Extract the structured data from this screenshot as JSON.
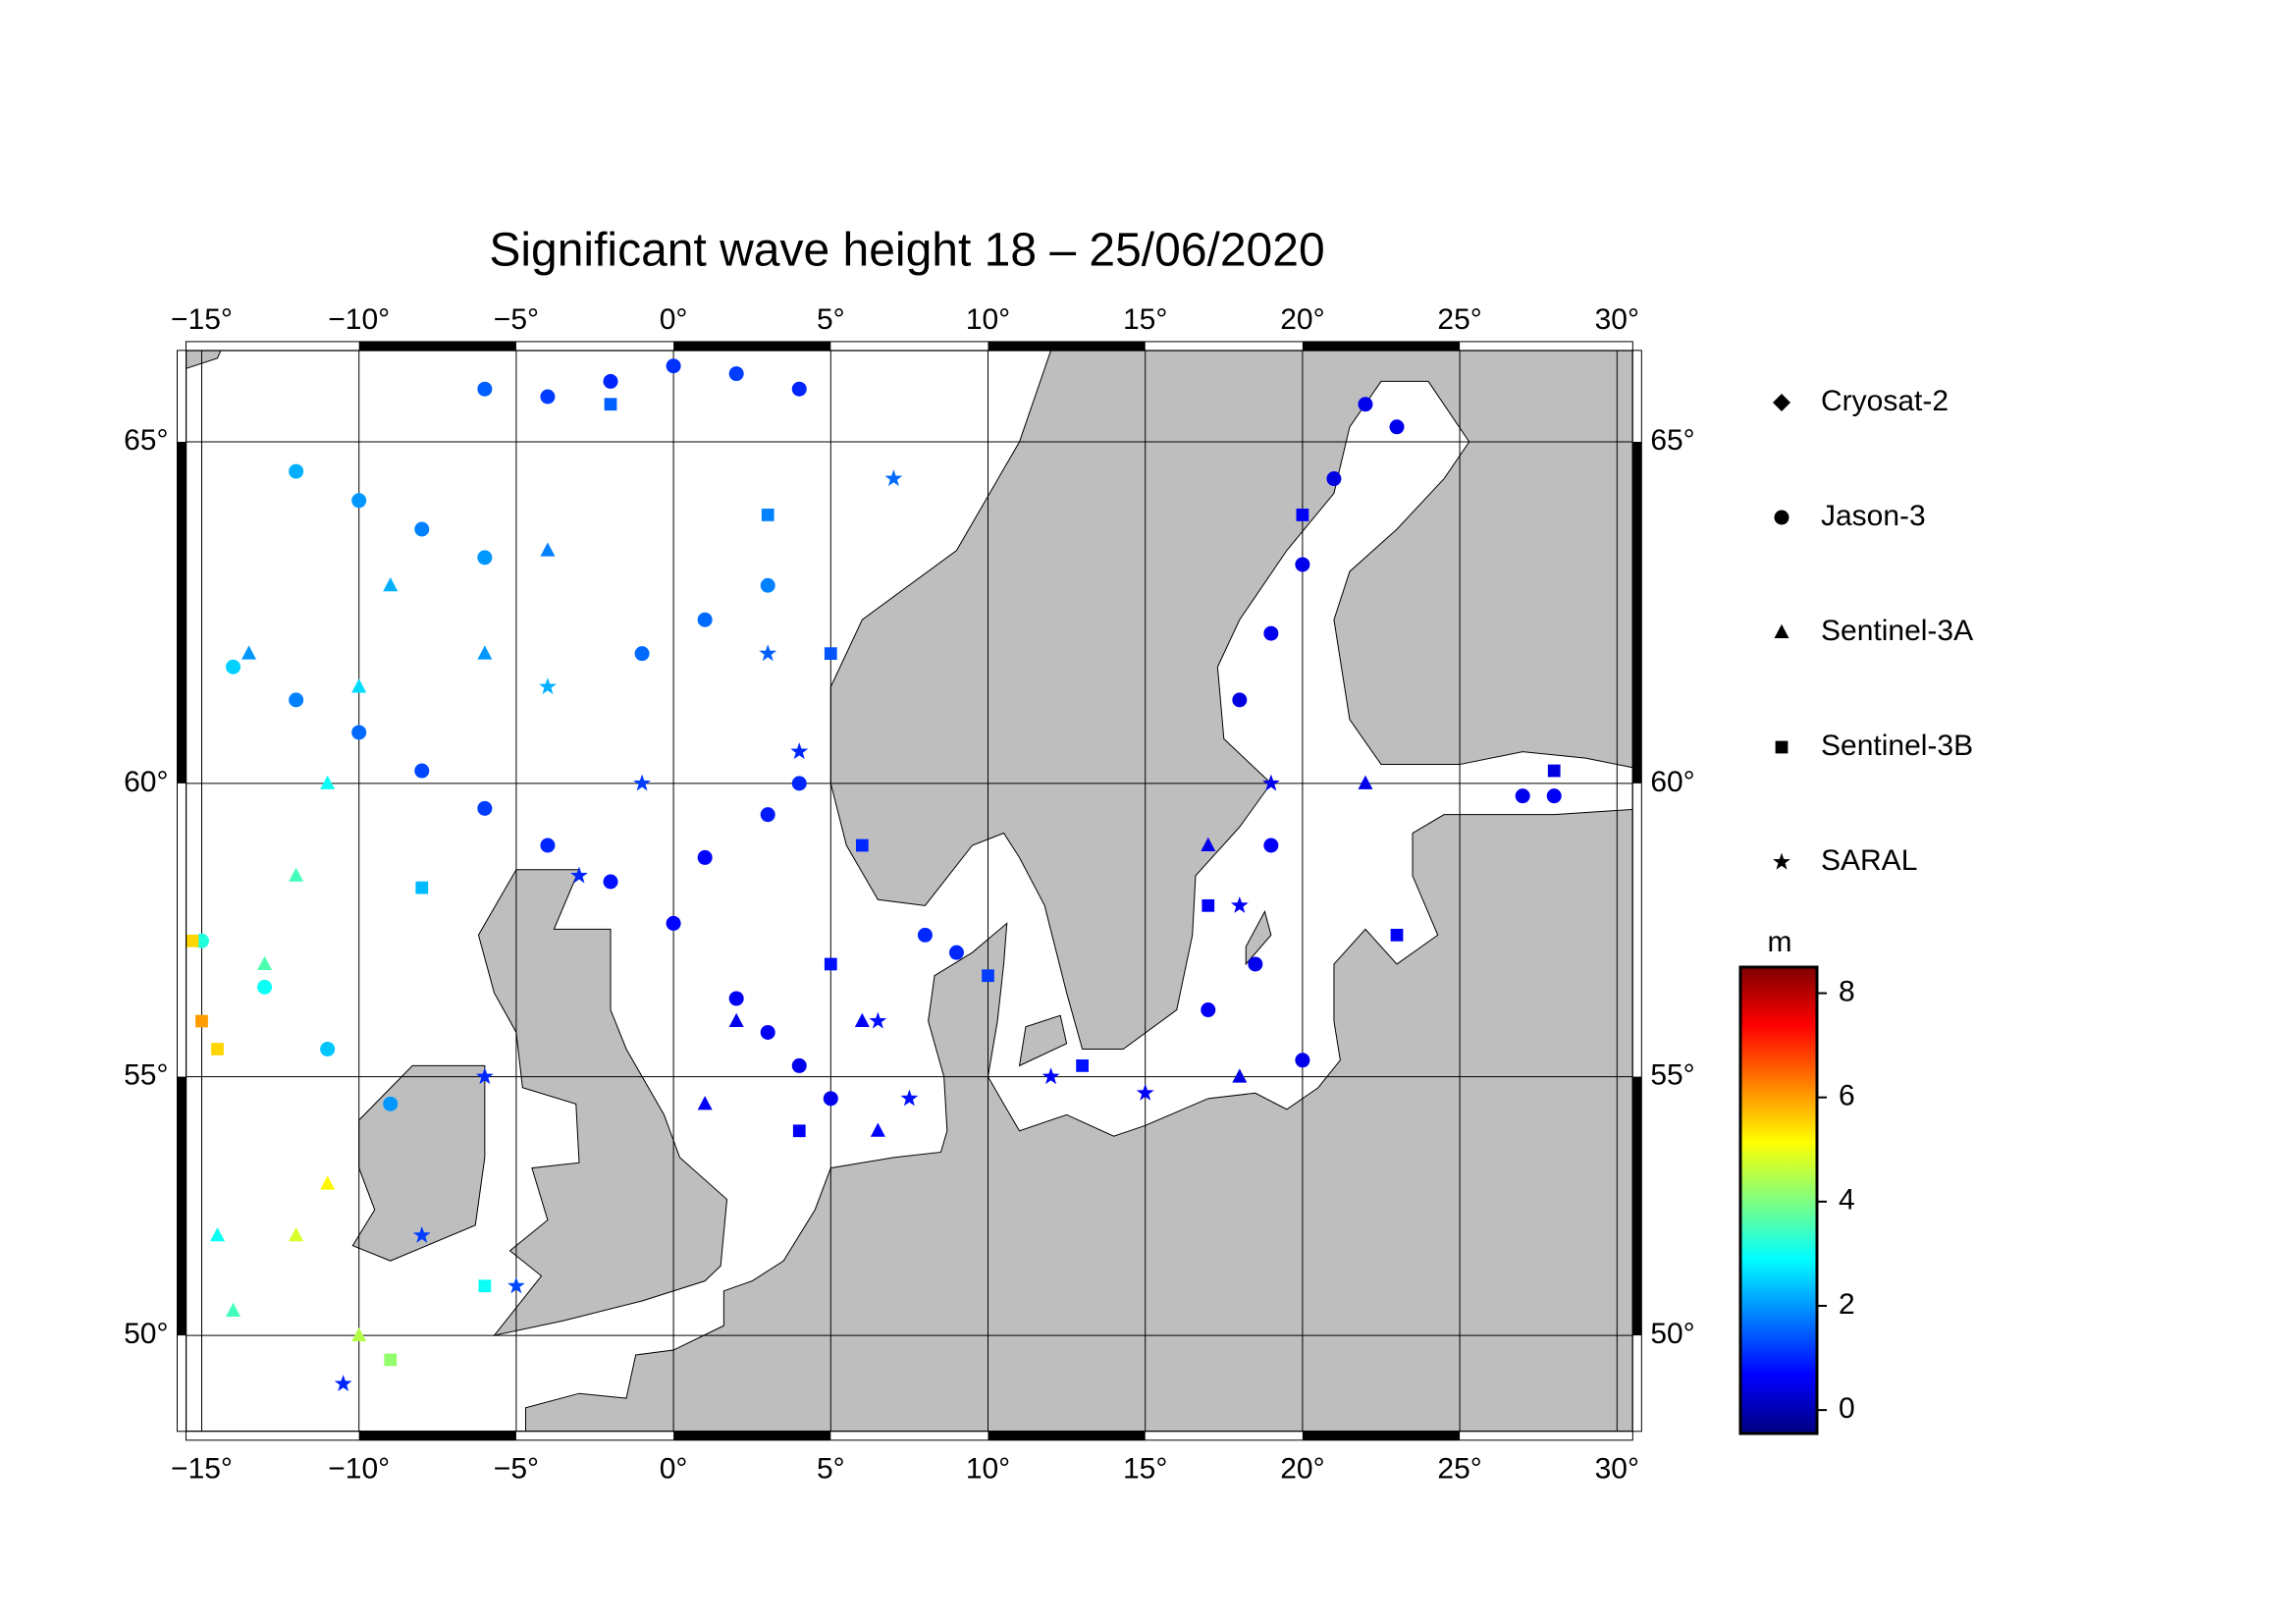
{
  "chart_data": {
    "type": "scatter",
    "title": "Significant wave height 18 – 25/06/2020",
    "projection": "mercator",
    "xlim": [
      -15.5,
      30.5
    ],
    "ylim": [
      48,
      66.2
    ],
    "xticks": [
      {
        "value": -15,
        "label": "−15°"
      },
      {
        "value": -10,
        "label": "−10°"
      },
      {
        "value": -5,
        "label": "−5°"
      },
      {
        "value": 0,
        "label": "0°"
      },
      {
        "value": 5,
        "label": "5°"
      },
      {
        "value": 10,
        "label": "10°"
      },
      {
        "value": 15,
        "label": "15°"
      },
      {
        "value": 20,
        "label": "20°"
      },
      {
        "value": 25,
        "label": "25°"
      },
      {
        "value": 30,
        "label": "30°"
      }
    ],
    "yticks": [
      {
        "value": 50,
        "label": "50°"
      },
      {
        "value": 55,
        "label": "55°"
      },
      {
        "value": 60,
        "label": "60°"
      },
      {
        "value": 65,
        "label": "65°"
      }
    ],
    "grid": true,
    "colorbar": {
      "label": "m",
      "colormap": "jet",
      "lim": [
        -0.45,
        8.5
      ],
      "ticks": [
        0,
        2,
        4,
        6,
        8
      ]
    },
    "series": [
      {
        "name": "Cryosat-2",
        "marker": "diamond",
        "color": "#000000",
        "x": [],
        "y": [],
        "values": []
      },
      {
        "name": "Jason-3",
        "marker": "circle",
        "color": "#000000",
        "x": [
          -6,
          -4,
          -2,
          0,
          2,
          4,
          -12,
          -10,
          -8,
          -6,
          -14,
          -12,
          -10,
          -8,
          -6,
          -4,
          -2,
          0,
          2,
          3,
          4,
          5,
          1,
          3,
          4,
          -1,
          1,
          3,
          -15,
          -13,
          -11,
          -9,
          22,
          23,
          21,
          20,
          19,
          18,
          19,
          18.5,
          17,
          20,
          27,
          28,
          8,
          9
        ],
        "y": [
          65.7,
          65.6,
          65.8,
          66.0,
          65.9,
          65.7,
          64.6,
          64.2,
          63.8,
          63.4,
          61.8,
          61.3,
          60.8,
          60.2,
          59.6,
          59.0,
          58.4,
          57.7,
          56.4,
          55.8,
          55.2,
          54.6,
          58.8,
          59.5,
          60,
          62,
          62.5,
          63,
          57.4,
          56.6,
          55.5,
          54.5,
          65.5,
          65.2,
          64.5,
          63.3,
          62.3,
          61.3,
          59,
          57,
          56.2,
          55.3,
          59.8,
          59.8,
          57.5,
          57.2
        ],
        "values": [
          1.5,
          1.2,
          1.0,
          1.1,
          1.2,
          1.0,
          2.2,
          2.0,
          1.8,
          2.0,
          2.5,
          1.8,
          1.6,
          1.3,
          1.2,
          1.0,
          0.8,
          0.7,
          0.6,
          0.6,
          0.5,
          0.5,
          0.7,
          0.9,
          1.0,
          1.6,
          1.6,
          1.8,
          3.2,
          3.0,
          2.4,
          2.0,
          0.5,
          0.5,
          0.4,
          0.5,
          0.5,
          0.4,
          0.6,
          0.5,
          0.6,
          0.5,
          0.5,
          0.6,
          1.0,
          1.0
        ]
      },
      {
        "name": "Sentinel-3A",
        "marker": "triangle",
        "color": "#000000",
        "x": [
          -14.5,
          -14,
          -13,
          -12,
          -11,
          -10,
          -9,
          -13.5,
          -6,
          -4,
          2,
          1,
          6,
          6.5,
          17,
          18,
          22,
          -12,
          -11,
          -10
        ],
        "y": [
          52,
          50.5,
          57,
          58.5,
          60,
          61.5,
          63,
          62,
          62,
          63.5,
          56,
          54.5,
          56,
          54,
          59,
          55,
          60,
          52,
          53,
          50
        ],
        "values": [
          3.0,
          3.5,
          3.6,
          3.5,
          3.0,
          2.6,
          2.2,
          2.0,
          2.0,
          1.8,
          0.5,
          0.6,
          0.6,
          0.7,
          0.5,
          0.4,
          0.5,
          4.8,
          5.2,
          4.5
        ]
      },
      {
        "name": "Sentinel-3B",
        "marker": "square",
        "color": "#000000",
        "x": [
          -15.3,
          -15,
          -14.5,
          -8,
          -2,
          3,
          5,
          6,
          5,
          4,
          10,
          13,
          17,
          23,
          20,
          28,
          -6,
          -9
        ],
        "y": [
          57.4,
          56,
          55.5,
          58.3,
          65.5,
          64,
          62,
          59,
          57,
          54,
          56.8,
          55.2,
          58,
          57.5,
          64,
          60.2,
          51,
          49.5
        ],
        "values": [
          5.5,
          6.0,
          5.5,
          2.3,
          1.5,
          1.8,
          1.4,
          1.0,
          0.8,
          0.6,
          1.2,
          0.8,
          0.6,
          0.6,
          0.6,
          0.4,
          3.0,
          4.2
        ]
      },
      {
        "name": "SARAL",
        "marker": "star",
        "color": "#000000",
        "x": [
          -1,
          -3,
          -6,
          -8,
          -10.5,
          3,
          4,
          6.5,
          7.5,
          12,
          15,
          18,
          19,
          -5,
          -4,
          7
        ],
        "y": [
          60,
          58.5,
          55,
          52,
          49,
          62,
          60.5,
          56,
          54.6,
          55,
          54.7,
          58,
          60,
          51,
          61.5,
          64.5
        ],
        "values": [
          1.2,
          1.0,
          1.0,
          1.2,
          1.0,
          1.5,
          1.0,
          0.8,
          0.8,
          0.7,
          0.6,
          0.6,
          0.5,
          1.3,
          2.2,
          1.6
        ]
      }
    ]
  }
}
